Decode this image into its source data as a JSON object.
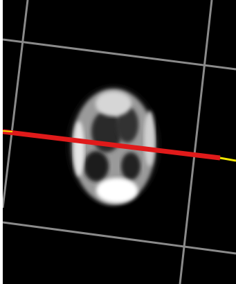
{
  "viewer": {
    "background_color": "#000000",
    "grid_color": "#8a8a8a",
    "cut_line_color": "#e01a1a",
    "cut_line_end_color": "#f2e600"
  },
  "icons": {
    "grid": "bounding-grid-lines",
    "slice": "brain-slice",
    "cut_line": "slice-intersection-line"
  }
}
